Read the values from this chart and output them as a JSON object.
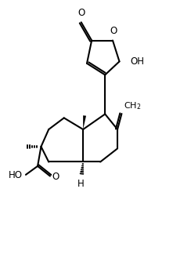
{
  "figsize": [
    2.44,
    3.52
  ],
  "dpi": 100,
  "bg": "#ffffff",
  "lc": "#000000",
  "lw": 1.5,
  "fs": 8.5,
  "xlim": [
    0,
    10
  ],
  "ylim": [
    0,
    14.4
  ]
}
